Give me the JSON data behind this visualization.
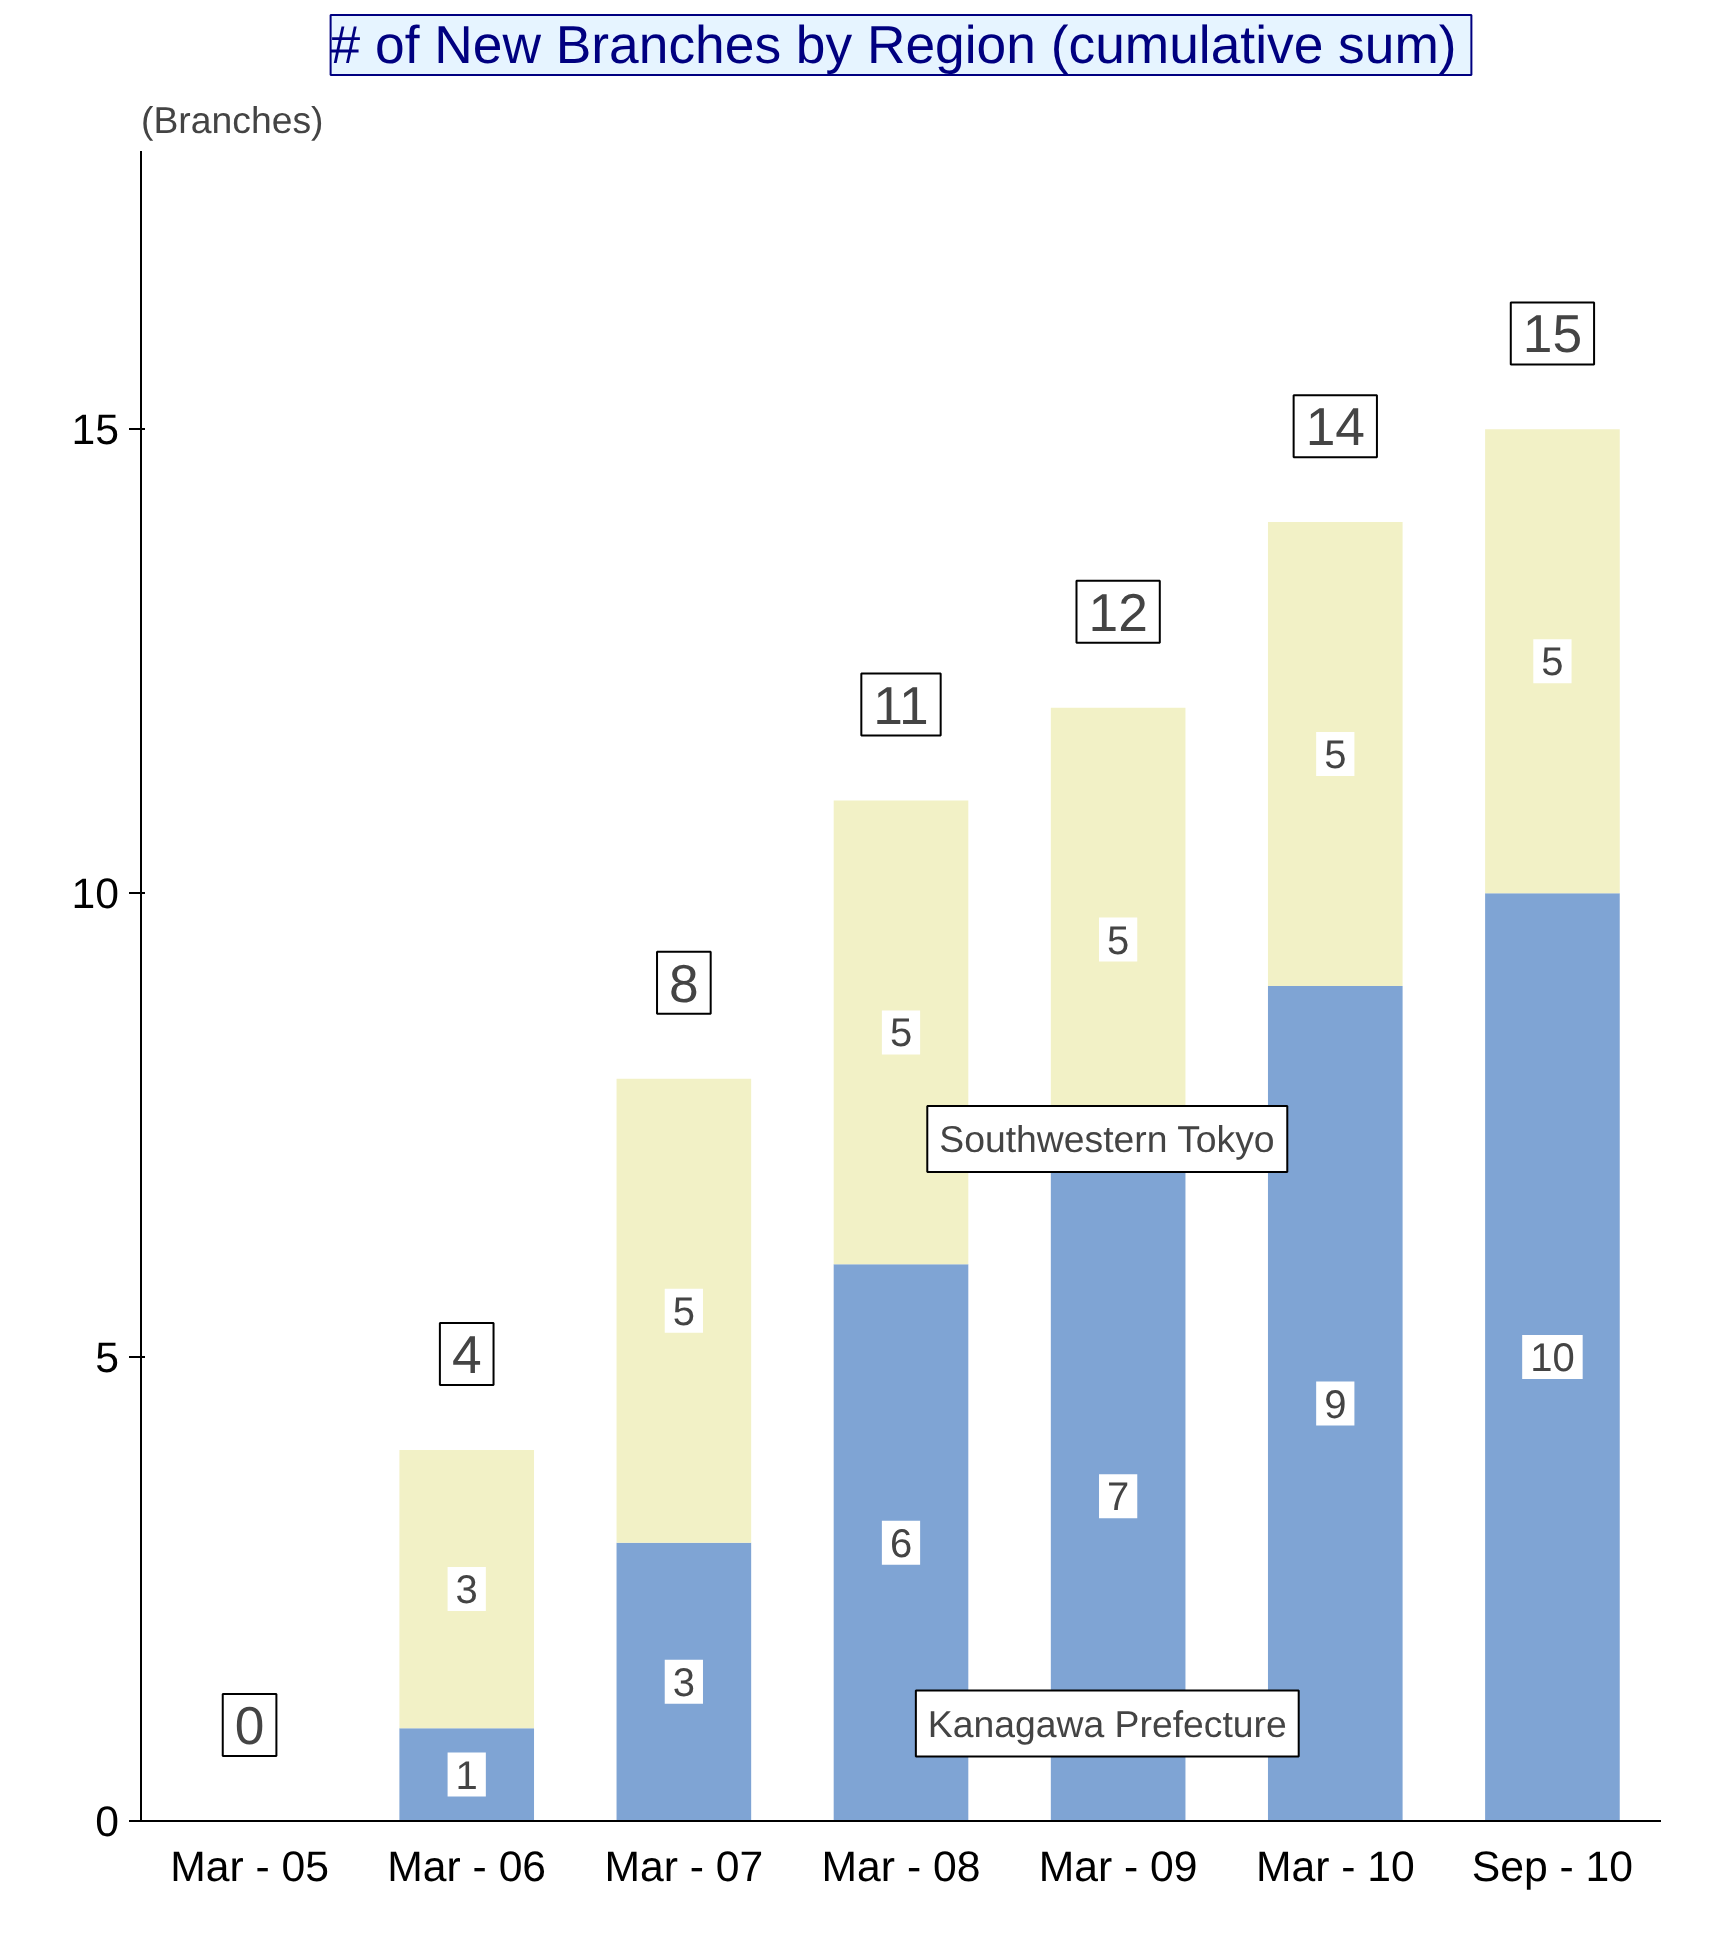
{
  "chart_data": {
    "type": "bar",
    "stacked": true,
    "title": "# of New Branches by Region",
    "subtitle": "(cumulative sum)",
    "ylabel": "(Branches)",
    "categories": [
      "Mar - 05",
      "Mar - 06",
      "Mar - 07",
      "Mar - 08",
      "Mar - 09",
      "Mar - 10",
      "Sep - 10"
    ],
    "series": [
      {
        "name": "Kanagawa Prefecture",
        "color": "#7fa4d4",
        "values": [
          0,
          1,
          3,
          6,
          7,
          9,
          10
        ],
        "value_labels": [
          null,
          "1",
          "3",
          "6",
          "7",
          "9",
          "10"
        ]
      },
      {
        "name": "Southwestern Tokyo",
        "color": "#f2f1c6",
        "values": [
          0,
          3,
          5,
          5,
          5,
          5,
          5
        ],
        "value_labels": [
          null,
          "3",
          "5",
          "5",
          "5",
          "5",
          "5"
        ]
      }
    ],
    "totals": [
      "0",
      "4",
      "8",
      "11",
      "12",
      "14",
      "15"
    ],
    "ylim": [
      0,
      18
    ],
    "yticks": [
      0,
      5,
      10,
      15
    ],
    "grid": false
  }
}
